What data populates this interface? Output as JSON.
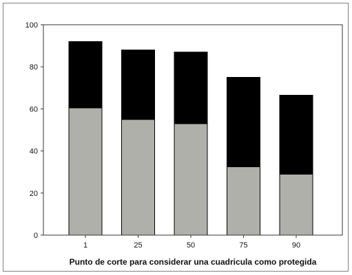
{
  "chart_data": {
    "type": "bar",
    "stacked": true,
    "categories": [
      "1",
      "25",
      "50",
      "75",
      "90"
    ],
    "series": [
      {
        "values": [
          60.5,
          55,
          53,
          32.5,
          29
        ],
        "color": "#b0b0aa"
      },
      {
        "values": [
          31.5,
          33,
          34,
          42.5,
          37.5
        ],
        "color": "#000000"
      }
    ],
    "totals": [
      92,
      88,
      87,
      75,
      66.5
    ],
    "title": "",
    "xlabel": "Punto de corte para considerar una cuadricula como protegida",
    "ylabel": "",
    "ylim": [
      0,
      100
    ],
    "yticks": [
      0,
      20,
      40,
      60,
      80,
      100
    ],
    "yticks_text": [
      "0",
      "20",
      "40",
      "60",
      "80",
      "100"
    ],
    "grid": false,
    "legend": "none"
  }
}
